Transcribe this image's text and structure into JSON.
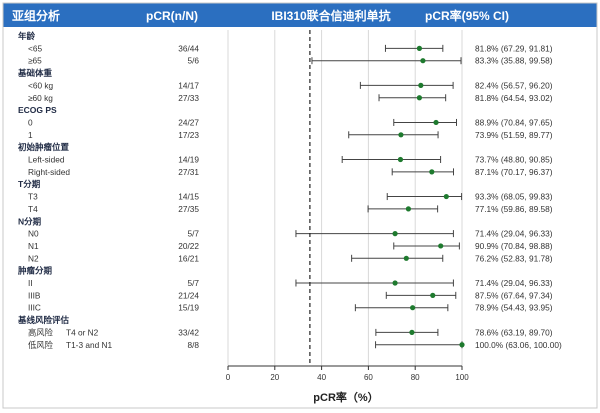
{
  "header": {
    "col_subgroup": "亚组分析",
    "col_pcr_n": "pCR(n/N)",
    "col_treatment": "IBI310联合信迪利单抗",
    "col_pcr_rate": "pCR率(95% CI)"
  },
  "colors": {
    "header_bg": "#2b6fc0",
    "point": "#1e7a2e",
    "whisker": "#444444",
    "reference_line": "#222222",
    "grid": "#d9d9d9"
  },
  "chart_data": {
    "type": "forest",
    "xlabel": "pCR率（%）",
    "xlim": [
      0,
      100
    ],
    "xticks": [
      0,
      20,
      40,
      60,
      80,
      100
    ],
    "reference_line": {
      "value": 35,
      "style": "dashed"
    },
    "grid": true,
    "groups": [
      {
        "name": "年龄",
        "rows": [
          {
            "label": "<65",
            "pcr_n": "36/44",
            "rate_text": "81.8% (67.29, 91.81)",
            "estimate": 81.8,
            "lower": 67.29,
            "upper": 91.81
          },
          {
            "label": "≥65",
            "pcr_n": "5/6",
            "rate_text": "83.3% (35.88, 99.58)",
            "estimate": 83.3,
            "lower": 35.88,
            "upper": 99.58
          }
        ]
      },
      {
        "name": "基础体重",
        "rows": [
          {
            "label": "<60 kg",
            "pcr_n": "14/17",
            "rate_text": "82.4% (56.57, 96.20)",
            "estimate": 82.4,
            "lower": 56.57,
            "upper": 96.2
          },
          {
            "label": "≥60 kg",
            "pcr_n": "27/33",
            "rate_text": "81.8% (64.54, 93.02)",
            "estimate": 81.8,
            "lower": 64.54,
            "upper": 93.02
          }
        ]
      },
      {
        "name": "ECOG PS",
        "rows": [
          {
            "label": "0",
            "pcr_n": "24/27",
            "rate_text": "88.9% (70.84, 97.65)",
            "estimate": 88.9,
            "lower": 70.84,
            "upper": 97.65
          },
          {
            "label": "1",
            "pcr_n": "17/23",
            "rate_text": "73.9% (51.59, 89.77)",
            "estimate": 73.9,
            "lower": 51.59,
            "upper": 89.77
          }
        ]
      },
      {
        "name": "初始肿瘤位置",
        "rows": [
          {
            "label": "Left-sided",
            "pcr_n": "14/19",
            "rate_text": "73.7% (48.80, 90.85)",
            "estimate": 73.7,
            "lower": 48.8,
            "upper": 90.85
          },
          {
            "label": "Right-sided",
            "pcr_n": "27/31",
            "rate_text": "87.1% (70.17, 96.37)",
            "estimate": 87.1,
            "lower": 70.17,
            "upper": 96.37
          }
        ]
      },
      {
        "name": "T分期",
        "rows": [
          {
            "label": "T3",
            "pcr_n": "14/15",
            "rate_text": "93.3% (68.05, 99.83)",
            "estimate": 93.3,
            "lower": 68.05,
            "upper": 99.83
          },
          {
            "label": "T4",
            "pcr_n": "27/35",
            "rate_text": "77.1% (59.86, 89.58)",
            "estimate": 77.1,
            "lower": 59.86,
            "upper": 89.58
          }
        ]
      },
      {
        "name": "N分期",
        "rows": [
          {
            "label": "N0",
            "pcr_n": "5/7",
            "rate_text": "71.4% (29.04, 96.33)",
            "estimate": 71.4,
            "lower": 29.04,
            "upper": 96.33
          },
          {
            "label": "N1",
            "pcr_n": "20/22",
            "rate_text": "90.9% (70.84, 98.88)",
            "estimate": 90.9,
            "lower": 70.84,
            "upper": 98.88
          },
          {
            "label": "N2",
            "pcr_n": "16/21",
            "rate_text": "76.2% (52.83, 91.78)",
            "estimate": 76.2,
            "lower": 52.83,
            "upper": 91.78
          }
        ]
      },
      {
        "name": "肿瘤分期",
        "rows": [
          {
            "label": "II",
            "pcr_n": "5/7",
            "rate_text": "71.4% (29.04, 96.33)",
            "estimate": 71.4,
            "lower": 29.04,
            "upper": 96.33
          },
          {
            "label": "IIIB",
            "pcr_n": "21/24",
            "rate_text": "87.5% (67.64, 97.34)",
            "estimate": 87.5,
            "lower": 67.64,
            "upper": 97.34
          },
          {
            "label": "IIIC",
            "pcr_n": "15/19",
            "rate_text": "78.9% (54.43, 93.95)",
            "estimate": 78.9,
            "lower": 54.43,
            "upper": 93.95
          }
        ]
      },
      {
        "name": "基线风险评估",
        "rows": [
          {
            "label": "高风险",
            "label_detail": "T4 or N2",
            "pcr_n": "33/42",
            "rate_text": "78.6% (63.19, 89.70)",
            "estimate": 78.6,
            "lower": 63.19,
            "upper": 89.7
          },
          {
            "label": "低风险",
            "label_detail": "T1-3 and N1",
            "pcr_n": "8/8",
            "rate_text": "100.0% (63.06, 100.00)",
            "estimate": 100.0,
            "lower": 63.06,
            "upper": 100.0
          }
        ]
      }
    ]
  }
}
